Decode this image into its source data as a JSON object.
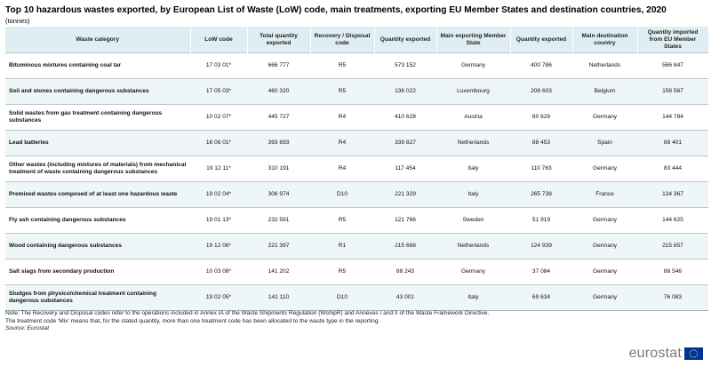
{
  "title": "Top 10 hazardous wastes exported, by European List of Waste (LoW) code, main treatments, exporting EU Member States and destination countries, 2020",
  "unit": "(tonnes)",
  "columns": [
    "Waste category",
    "LoW code",
    "Total quantity exported",
    "Recovery / Disposal code",
    "Quantity exported",
    "Main exporting Member State",
    "Quantity exported",
    "Main destination country",
    "Quantity imported from EU Member States"
  ],
  "rows": [
    [
      "Bituminous mixtures containing coal tar",
      "17 03 01*",
      "666 777",
      "R5",
      "573 152",
      "Germany",
      "400 786",
      "Netherlands",
      "566 847"
    ],
    [
      "Soil and stones containing dangerous substances",
      "17 05 03*",
      "460 320",
      "R5",
      "136 022",
      "Luxembourg",
      "208 603",
      "Belgium",
      "158 567"
    ],
    [
      "Solid wastes from gas treatment containing dangerous substances",
      "10 02 07*",
      "445 727",
      "R4",
      "410 628",
      "Austria",
      "80 629",
      "Germany",
      "144 784"
    ],
    [
      "Lead batteries",
      "16 06 01*",
      "393 693",
      "R4",
      "339 827",
      "Netherlands",
      "88 453",
      "Spain",
      "88 401"
    ],
    [
      "Other wastes (including mixtures of materials) from mechanical treatment of waste containing dangerous substances",
      "19 12 11*",
      "310 191",
      "R4",
      "117 454",
      "Italy",
      "110 763",
      "Germany",
      "83 444"
    ],
    [
      "Premixed wastes composed of at least one hazardous waste",
      "19 02 04*",
      "306 974",
      "D10",
      "221 329",
      "Italy",
      "265 738",
      "France",
      "134 367"
    ],
    [
      "Fly ash containing dangerous substances",
      "19 01 13*",
      "232 581",
      "R5",
      "121 766",
      "Sweden",
      "51 919",
      "Germany",
      "144 625"
    ],
    [
      "Wood containing dangerous substances",
      "19 12 06*",
      "221 397",
      "R1",
      "215 668",
      "Netherlands",
      "124 939",
      "Germany",
      "215 857"
    ],
    [
      "Salt slags from secondary production",
      "10 03 08*",
      "141 202",
      "R5",
      "88 243",
      "Germany",
      "37 084",
      "Germany",
      "88 546"
    ],
    [
      "Sludges from physico/chemical treatment containing dangerous substances",
      "19 02 05*",
      "141 110",
      "D10",
      "43 001",
      "Italy",
      "69 634",
      "Germany",
      "76 083"
    ]
  ],
  "notes": {
    "note1": "Note: The Recovery and Disposal codes refer to the operations included in Annex IA of the Waste Shipments Regulation (WshipR) and Annexes I and II of the Waste Framework Directive.",
    "note2": "The treatment code 'Mix' means that, for the stated quantity, more than one treatment code has been allocated to the waste type in the reporting.",
    "source": "Source: Eurostat"
  },
  "brand": {
    "name": "eurostat",
    "flag_icon": "eu-flag-icon",
    "flag_color": "#003399",
    "star_color": "#ffcc00"
  },
  "colors": {
    "header_bg": "#dfeef2",
    "alt_row_bg": "#eef6f8",
    "row_border": "#b7c9d0"
  }
}
